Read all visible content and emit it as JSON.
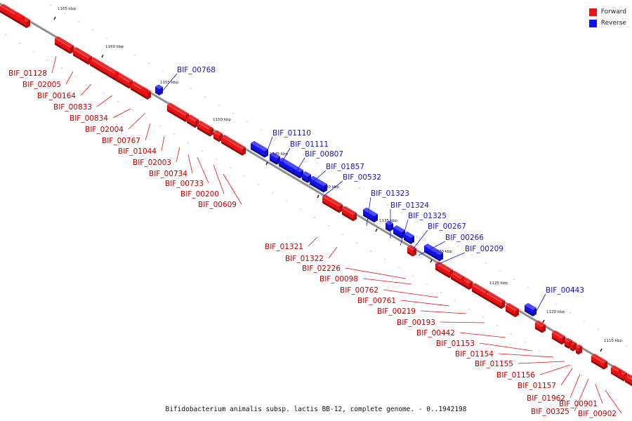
{
  "colors": {
    "forward": "#ee1111",
    "reverse": "#1111ee",
    "backbone": "#8a8a8a"
  },
  "legend": {
    "forward": "Forward",
    "reverse": "Reverse"
  },
  "footer": "Bifidobacterium animalis subsp. lactis BB-12, complete genome. - 0..1942198",
  "ticks": [
    "1165 kbp",
    "1160 kbp",
    "1155 kbp",
    "1150 kbp",
    "1145 kbp",
    "1140 kbp",
    "1135 kbp",
    "1130 kbp",
    "1125 kbp",
    "1120 kbp",
    "1115 kbp"
  ],
  "forward_labels": [
    "BIF_01128",
    "BIF_02005",
    "BIF_00164",
    "BIF_00833",
    "BIF_00834",
    "BIF_02004",
    "BIF_00767",
    "BIF_01044",
    "BIF_02003",
    "BIF_00734",
    "BIF_00733",
    "BIF_00200",
    "BIF_00609",
    "BIF_01321",
    "BIF_01322",
    "BIF_02226",
    "BIF_00098",
    "BIF_00762",
    "BIF_00761",
    "BIF_00219",
    "BIF_00193",
    "BIF_00442",
    "BIF_01153",
    "BIF_01154",
    "BIF_01155",
    "BIF_01156",
    "BIF_01157",
    "BIF_01962",
    "BIF_00325",
    "BIF_00901",
    "BIF_00902"
  ],
  "reverse_labels": [
    "BIF_00768",
    "BIF_01110",
    "BIF_01111",
    "BIF_00807",
    "BIF_01857",
    "BIF_00532",
    "BIF_01323",
    "BIF_01324",
    "BIF_01325",
    "BIF_00267",
    "BIF_00266",
    "BIF_00209",
    "BIF_00443"
  ]
}
